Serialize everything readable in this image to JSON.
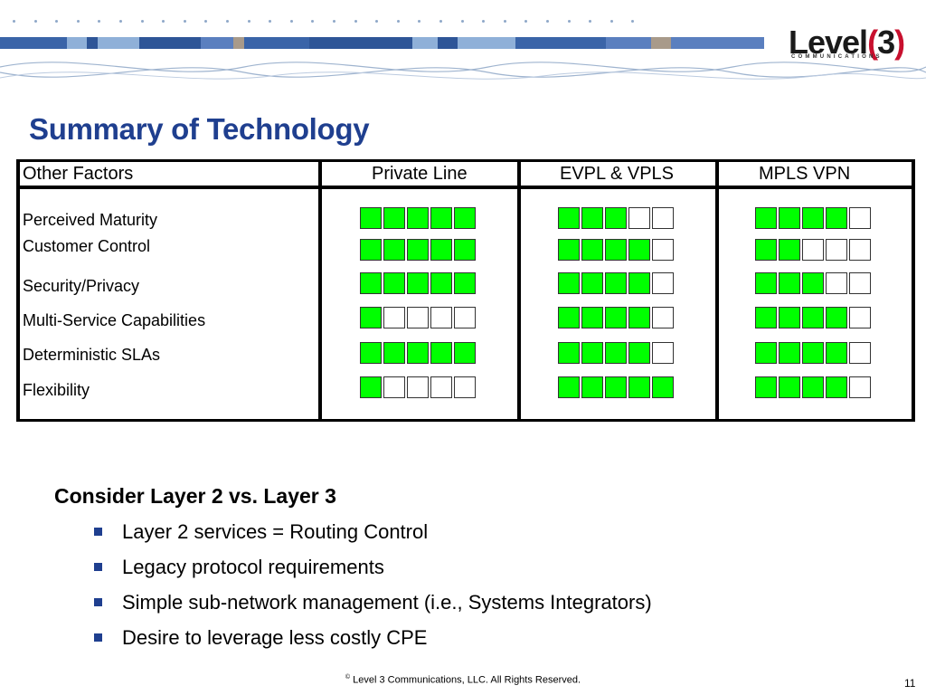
{
  "logo": {
    "name": "Level",
    "digit": "3",
    "sub": "COMMUNICATIONS"
  },
  "title": "Summary of Technology",
  "table": {
    "header_factor": "Other Factors",
    "columns": [
      "Private Line",
      "EVPL & VPLS",
      "MPLS VPN"
    ],
    "rows": [
      {
        "label": "Perceived Maturity",
        "ratings": [
          5,
          3,
          4
        ]
      },
      {
        "label": "Customer Control",
        "ratings": [
          5,
          4,
          2
        ]
      },
      {
        "label": "Security/Privacy",
        "ratings": [
          5,
          4,
          3
        ]
      },
      {
        "label": "Multi-Service Capabilities",
        "ratings": [
          1,
          4,
          4
        ]
      },
      {
        "label": "Deterministic SLAs",
        "ratings": [
          5,
          4,
          4
        ]
      },
      {
        "label": "Flexibility",
        "ratings": [
          1,
          5,
          4
        ]
      }
    ],
    "max_rating": 5,
    "colors": {
      "on": "#00ff00",
      "off": "#ffffff"
    }
  },
  "consider": {
    "heading": "Consider Layer 2 vs. Layer  3",
    "bullets": [
      "Layer 2 services = Routing Control",
      "Legacy protocol requirements",
      "Simple sub-network management (i.e., Systems Integrators)",
      "Desire to leverage less costly CPE"
    ]
  },
  "footer": {
    "copyright_symbol": "©",
    "text": "Level 3 Communications, LLC.  All Rights Reserved.",
    "page": "11"
  },
  "colors": {
    "title": "#1f3f8f",
    "bullet": "#1f3f8f",
    "logo_accent": "#c8102e"
  }
}
